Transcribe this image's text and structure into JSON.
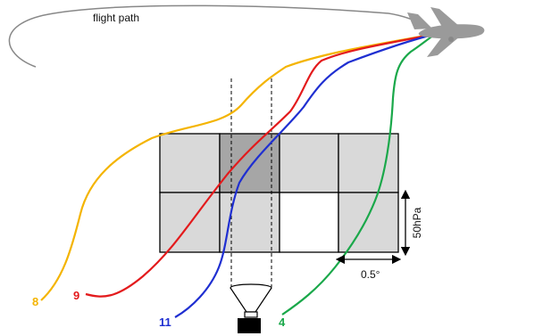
{
  "labels": {
    "flight_path": "flight path",
    "pressure_interval": "50hPa",
    "grid_spacing": "0.5°"
  },
  "trajectories": [
    {
      "label": "8",
      "color": "#f4b400"
    },
    {
      "label": "9",
      "color": "#e31a1c"
    },
    {
      "label": "11",
      "color": "#1f2fd1"
    },
    {
      "label": "4",
      "color": "#1aa84a"
    }
  ],
  "grid": {
    "rows": 2,
    "cols": 4,
    "cells": [
      [
        "light",
        "dark",
        "light",
        "light"
      ],
      [
        "light",
        "light",
        "white",
        "light"
      ]
    ],
    "colors": {
      "light": "#d9d9d9",
      "dark": "#a6a6a6",
      "white": "#ffffff"
    }
  },
  "icons": {
    "aircraft": "airplane-icon",
    "instrument": "radiometer-icon"
  }
}
